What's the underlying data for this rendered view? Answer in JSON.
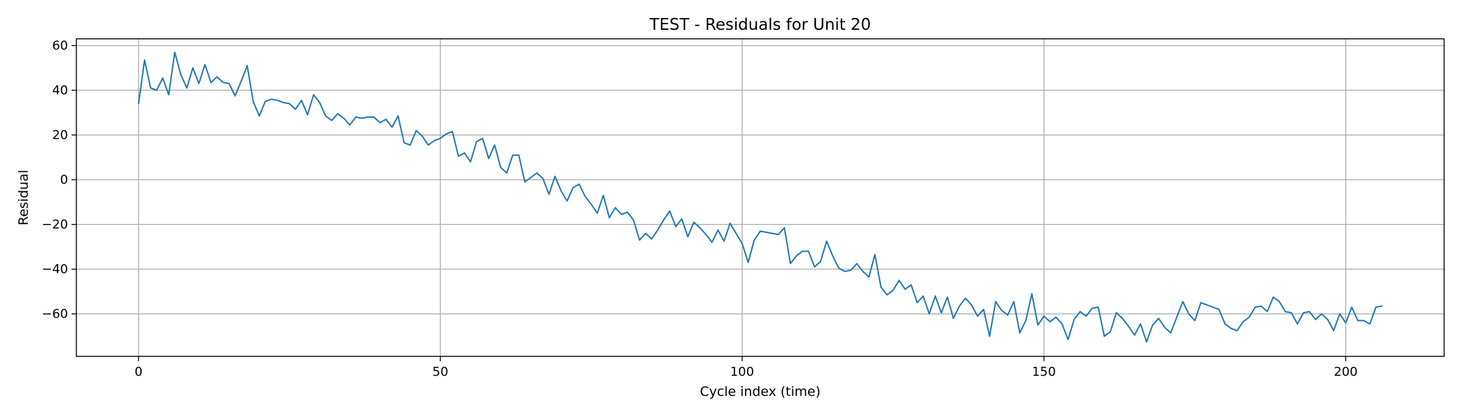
{
  "chart_data": {
    "type": "line",
    "title": "TEST - Residuals for Unit 20",
    "xlabel": "Cycle index (time)",
    "ylabel": "Residual",
    "xlim": [
      -10.3,
      216.3
    ],
    "ylim": [
      -79,
      63
    ],
    "xticks": [
      0,
      50,
      100,
      150,
      200
    ],
    "xtick_labels": [
      "0",
      "50",
      "100",
      "150",
      "200"
    ],
    "yticks": [
      -60,
      -40,
      -20,
      0,
      20,
      40,
      60
    ],
    "ytick_labels": [
      "−60",
      "−40",
      "−20",
      "0",
      "20",
      "40",
      "60"
    ],
    "grid": true,
    "series": [
      {
        "color": "#1f77b4",
        "x": [
          0,
          1,
          2,
          3,
          4,
          5,
          6,
          7,
          8,
          9,
          10,
          11,
          12,
          13,
          14,
          15,
          16,
          17,
          18,
          19,
          20,
          21,
          22,
          23,
          24,
          25,
          26,
          27,
          28,
          29,
          30,
          31,
          32,
          33,
          34,
          35,
          36,
          37,
          38,
          39,
          40,
          41,
          42,
          43,
          44,
          45,
          46,
          47,
          48,
          49,
          50,
          51,
          52,
          53,
          54,
          55,
          56,
          57,
          58,
          59,
          60,
          61,
          62,
          63,
          64,
          65,
          66,
          67,
          68,
          69,
          70,
          71,
          72,
          73,
          74,
          75,
          76,
          77,
          78,
          79,
          80,
          81,
          82,
          83,
          84,
          85,
          86,
          87,
          88,
          89,
          90,
          91,
          92,
          93,
          94,
          95,
          96,
          97,
          98,
          99,
          100,
          101,
          102,
          103,
          104,
          105,
          106,
          107,
          108,
          109,
          110,
          111,
          112,
          113,
          114,
          115,
          116,
          117,
          118,
          119,
          120,
          121,
          122,
          123,
          124,
          125,
          126,
          127,
          128,
          129,
          130,
          131,
          132,
          133,
          134,
          135,
          136,
          137,
          138,
          139,
          140,
          141,
          142,
          143,
          144,
          145,
          146,
          147,
          148,
          149,
          150,
          151,
          152,
          153,
          154,
          155,
          156,
          157,
          158,
          159,
          160,
          161,
          162,
          163,
          164,
          165,
          166,
          167,
          168,
          169,
          170,
          171,
          172,
          173,
          174,
          175,
          176,
          177,
          178,
          179,
          180,
          181,
          182,
          183,
          184,
          185,
          186,
          187,
          188,
          189,
          190,
          191,
          192,
          193,
          194,
          195,
          196,
          197,
          198,
          199,
          200,
          201,
          202,
          203,
          204,
          205,
          206
        ],
        "y": [
          34,
          53.5,
          41,
          40,
          45.5,
          38,
          57,
          47,
          41,
          50,
          43,
          51.5,
          43.5,
          46,
          43.5,
          43,
          37.5,
          44,
          51,
          35,
          28.5,
          35,
          36,
          35.5,
          34.5,
          34,
          31.5,
          35.5,
          29,
          38,
          34.5,
          28.5,
          26.5,
          29.5,
          27.5,
          24.5,
          28,
          27.5,
          28,
          28,
          25.5,
          27,
          23.5,
          28.5,
          16.5,
          15.5,
          22,
          19.5,
          15.5,
          17.5,
          18.5,
          20.5,
          21.5,
          10.5,
          12,
          8,
          17,
          18.5,
          9.5,
          15.5,
          5.5,
          3,
          11,
          11,
          -1,
          1,
          3,
          0.5,
          -6.5,
          1.5,
          -5,
          -9.5,
          -3.5,
          -2,
          -7.5,
          -11,
          -15,
          -7,
          -17,
          -12.5,
          -15.5,
          -14.5,
          -18,
          -27,
          -24,
          -26.5,
          -22.5,
          -18,
          -14,
          -21,
          -17.5,
          -25.5,
          -19,
          -21.5,
          -24.5,
          -28,
          -22.5,
          -27.5,
          -19.5,
          -24,
          -28.5,
          -37,
          -27,
          -23,
          -23.5,
          -24,
          -24.5,
          -21.5,
          -37.5,
          -34,
          -32,
          -32,
          -39,
          -36.5,
          -27.5,
          -34,
          -39.5,
          -41,
          -40.5,
          -37.5,
          -41,
          -43.5,
          -33.5,
          -48,
          -51.5,
          -49.5,
          -45,
          -49,
          -47,
          -55,
          -52,
          -60,
          -52,
          -59.5,
          -52.5,
          -62,
          -56.5,
          -53,
          -56,
          -61,
          -58,
          -70,
          -54.5,
          -58.5,
          -60.5,
          -54.5,
          -68.5,
          -63,
          -51,
          -65,
          -61,
          -63.5,
          -61.5,
          -64.5,
          -71.5,
          -62.5,
          -59,
          -61,
          -57.5,
          -57,
          -70,
          -68,
          -59.5,
          -62,
          -65.5,
          -69.5,
          -64.5,
          -72.5,
          -65,
          -62,
          -66,
          -68.5,
          -61.5,
          -54.5,
          -60,
          -63,
          -55,
          -56,
          -57,
          -58,
          -64.5,
          -66.5,
          -67.5,
          -63.5,
          -61.5,
          -57,
          -56.5,
          -59,
          -52.5,
          -54.5,
          -59,
          -59.5,
          -64.5,
          -59.5,
          -59,
          -62.5,
          -60,
          -62.5,
          -67.5,
          -60,
          -64,
          -57,
          -63,
          -63,
          -64.5,
          -57,
          -56.5
        ]
      }
    ]
  }
}
